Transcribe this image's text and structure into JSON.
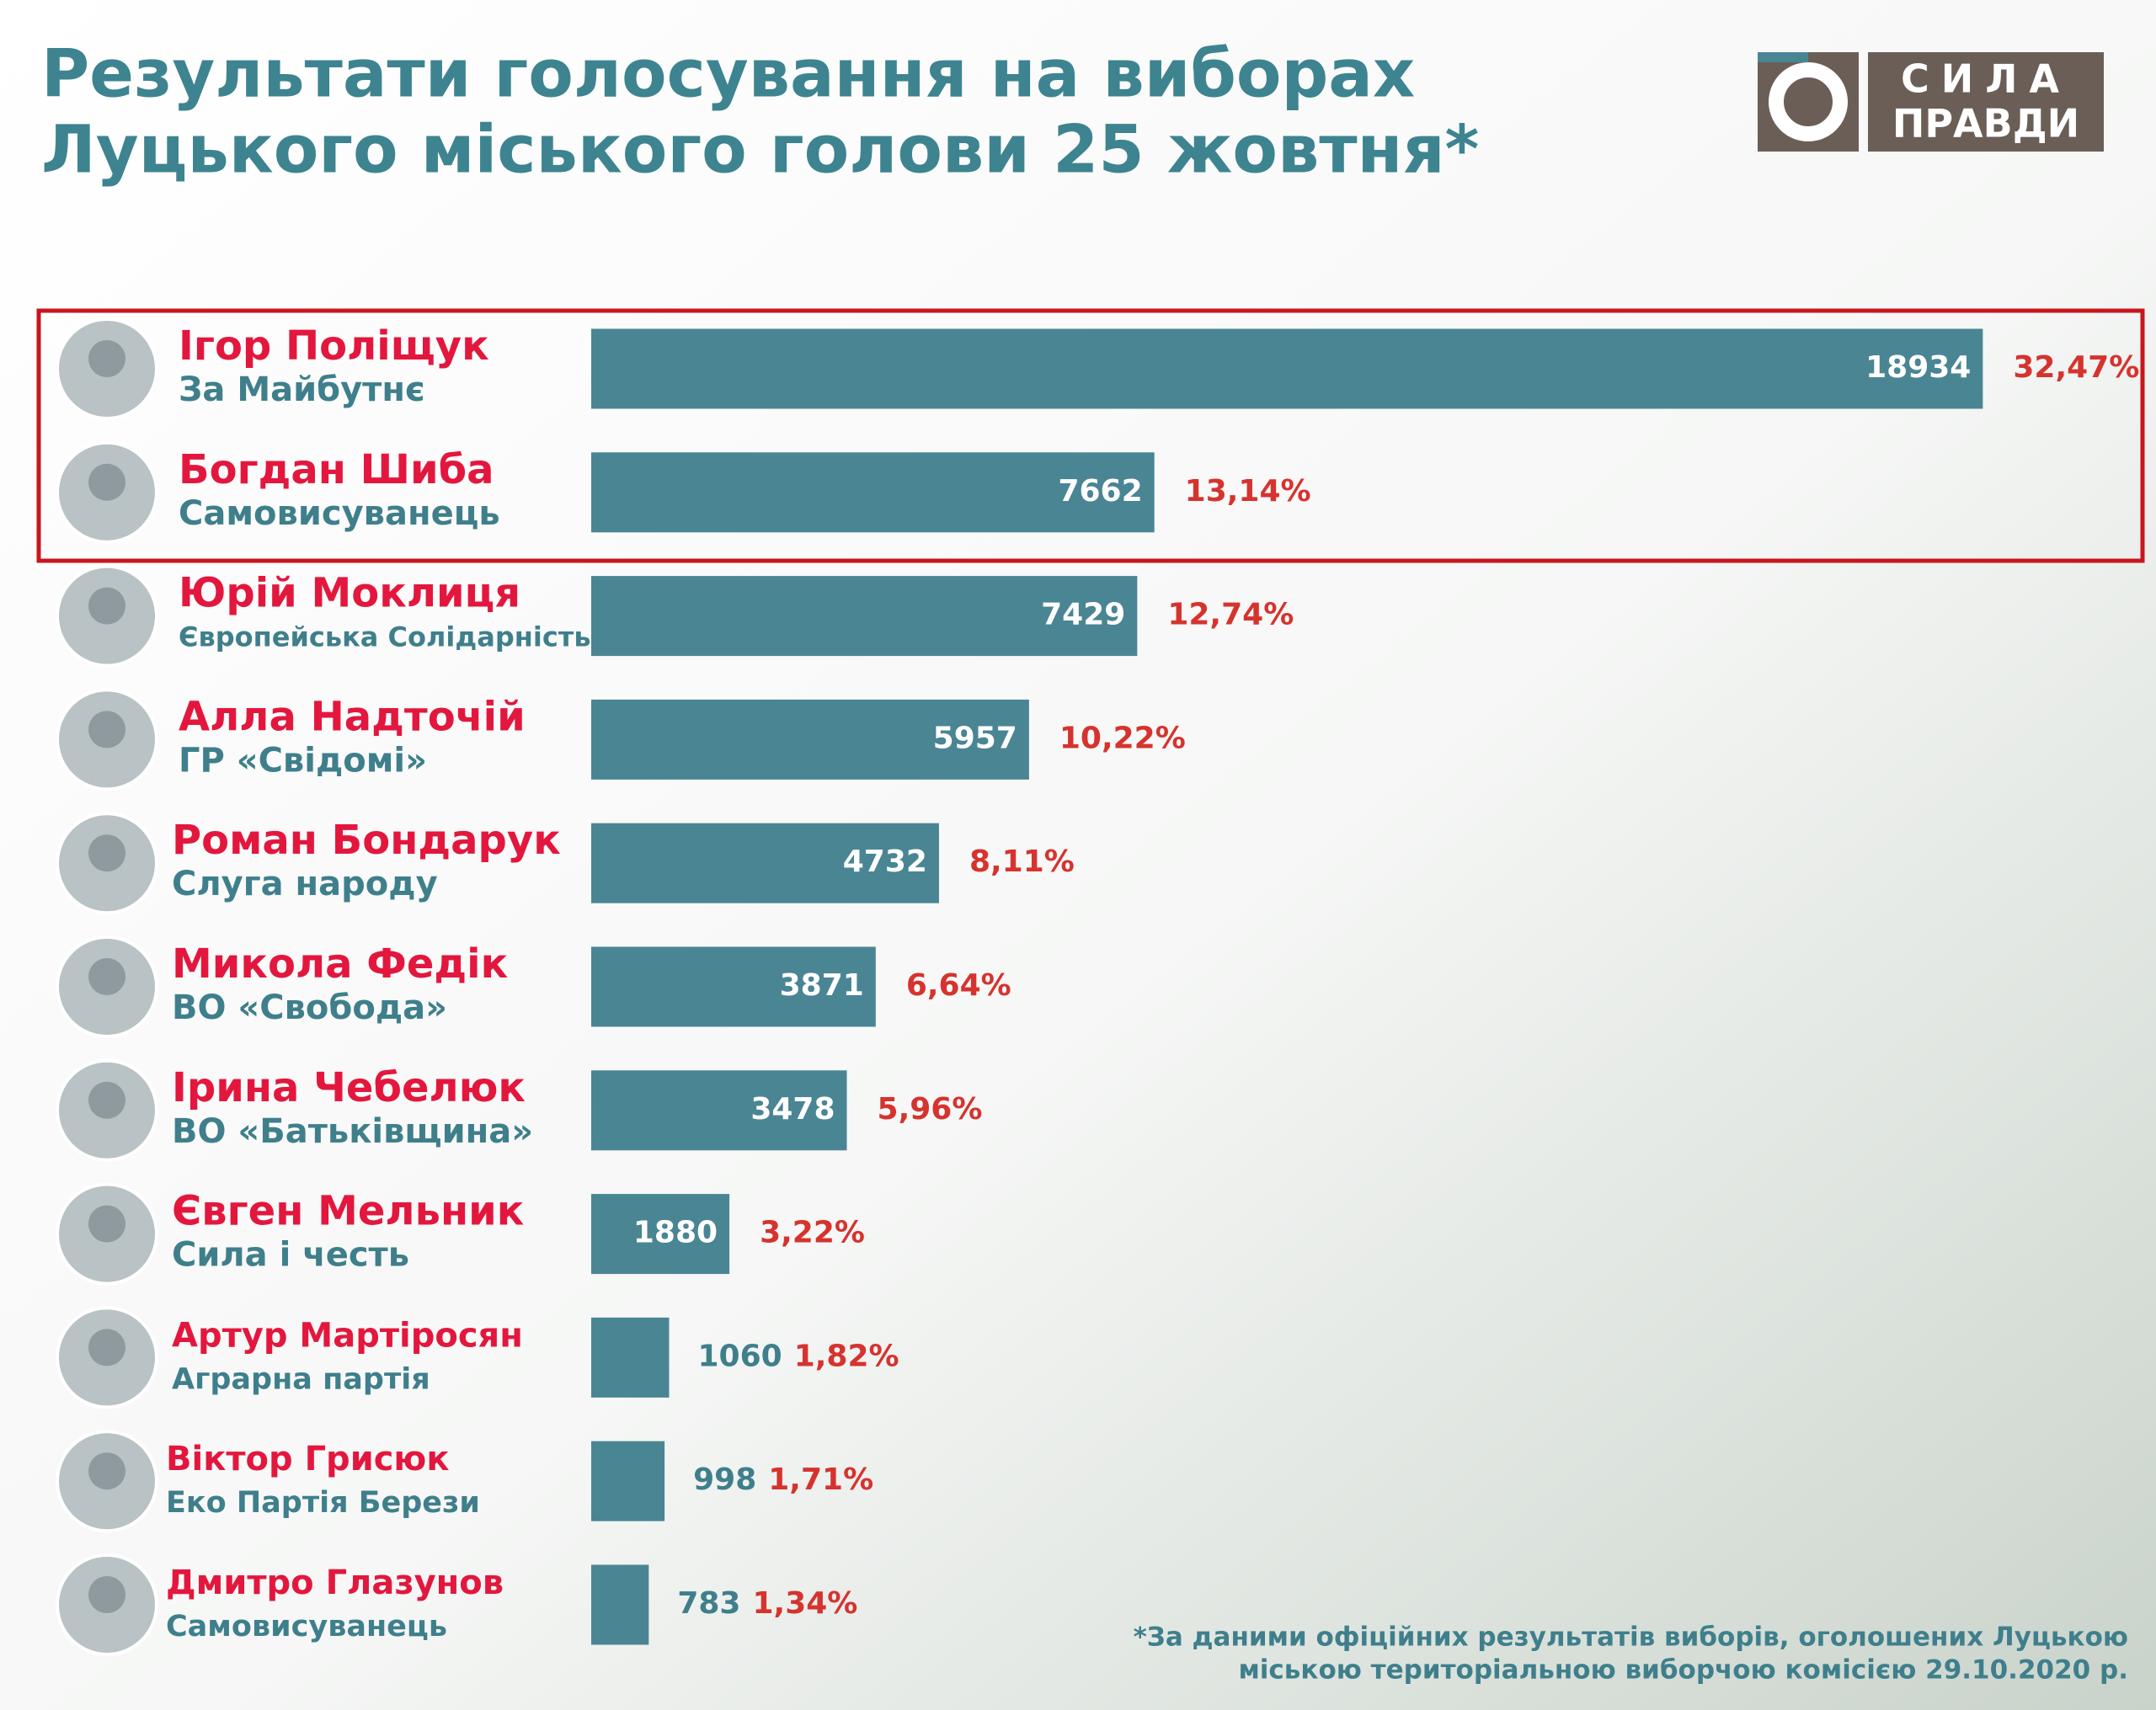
{
  "chart_data": {
    "type": "bar",
    "title": [
      "Результати голосування на виборах",
      "Луцького міського голови 25 жовтня*"
    ],
    "logo": [
      "СИЛА",
      "ПРАВДИ"
    ],
    "categories": [
      "Ігор Поліщук",
      "Богдан Шиба",
      "Юрій Моклиця",
      "Алла Надточій",
      "Роман Бондарук",
      "Микола Федік",
      "Ірина Чебелюк",
      "Євген Мельник",
      "Артур Мартіросян",
      "Віктор Грисюк",
      "Дмитро Глазунов"
    ],
    "parties": [
      "За Майбутнє",
      "Самовисуванець",
      "Європейська Солідарність",
      "ГР «Свідомі»",
      "Слуга народу",
      "ВО «Свобода»",
      "ВО «Батьківщина»",
      "Сила і честь",
      "Аграрна партія",
      "Еко Партія Берези",
      "Самовисуванець"
    ],
    "values": [
      18934,
      7662,
      7429,
      5957,
      4732,
      3871,
      3478,
      1880,
      1060,
      998,
      783
    ],
    "percent_labels": [
      "32,47%",
      "13,14%",
      "12,74%",
      "10,22%",
      "8,11%",
      "6,64%",
      "5,96%",
      "3,22%",
      "1,82%",
      "1,71%",
      "1,34%"
    ],
    "color": "#4a8594",
    "footnote": [
      "*За даними офіційних результатів виборів, оголошених Луцькою",
      "міською територіальною виборчою комісією 29.10.2020 р."
    ]
  }
}
